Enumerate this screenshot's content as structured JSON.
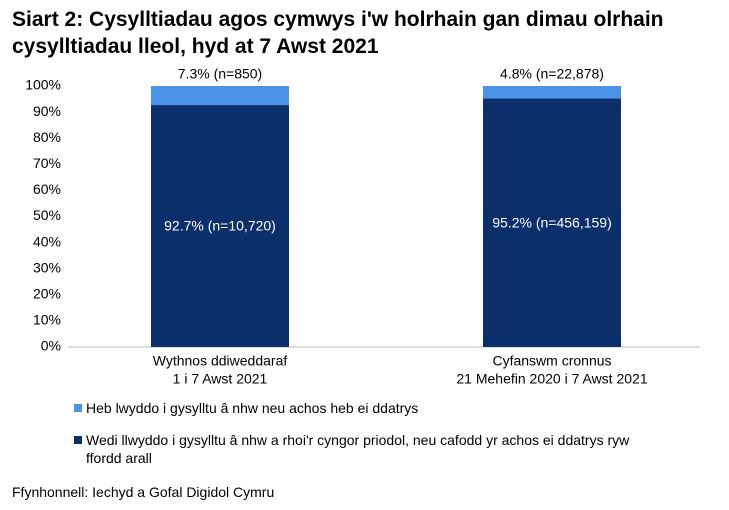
{
  "chart_data": {
    "type": "stacked_bar",
    "title": "Siart 2: Cysylltiadau agos cymwys i'w holrhain gan dimau olrhain cysylltiadau lleol, hyd at 7 Awst 2021",
    "categories": [
      [
        "Wythnos ddiweddaraf",
        "1 i 7 Awst 2021"
      ],
      [
        "Cyfanswm cronnus",
        "21 Mehefin 2020 i 7 Awst 2021"
      ]
    ],
    "series": [
      {
        "name": "Wedi llwyddo i gysylltu â nhw a rhoi'r cyngor priodol, neu cafodd yr achos ei ddatrys ryw ffordd arall",
        "color": "#0b2f6b",
        "values": [
          92.7,
          95.2
        ],
        "value_labels": [
          "92.7% (n=10,720)",
          "95.2% (n=456,159)"
        ]
      },
      {
        "name": "Heb lwyddo i gysylltu â nhw neu achos heb ei ddatrys",
        "color": "#4b93e8",
        "values": [
          7.3,
          4.8
        ],
        "value_labels": [
          "7.3% (n=850)",
          "4.8% (n=22,878)"
        ]
      }
    ],
    "ylim": [
      0,
      100
    ],
    "yticks": [
      {
        "value": 0,
        "label": "0%"
      },
      {
        "value": 10,
        "label": "10%"
      },
      {
        "value": 20,
        "label": "20%"
      },
      {
        "value": 30,
        "label": "30%"
      },
      {
        "value": 40,
        "label": "40%"
      },
      {
        "value": 50,
        "label": "50%"
      },
      {
        "value": 60,
        "label": "60%"
      },
      {
        "value": 70,
        "label": "70%"
      },
      {
        "value": 80,
        "label": "80%"
      },
      {
        "value": 90,
        "label": "90%"
      },
      {
        "value": 100,
        "label": "100%"
      }
    ],
    "grid": false,
    "source": "Ffynhonnell: Iechyd a Gofal Digidol Cymru"
  }
}
